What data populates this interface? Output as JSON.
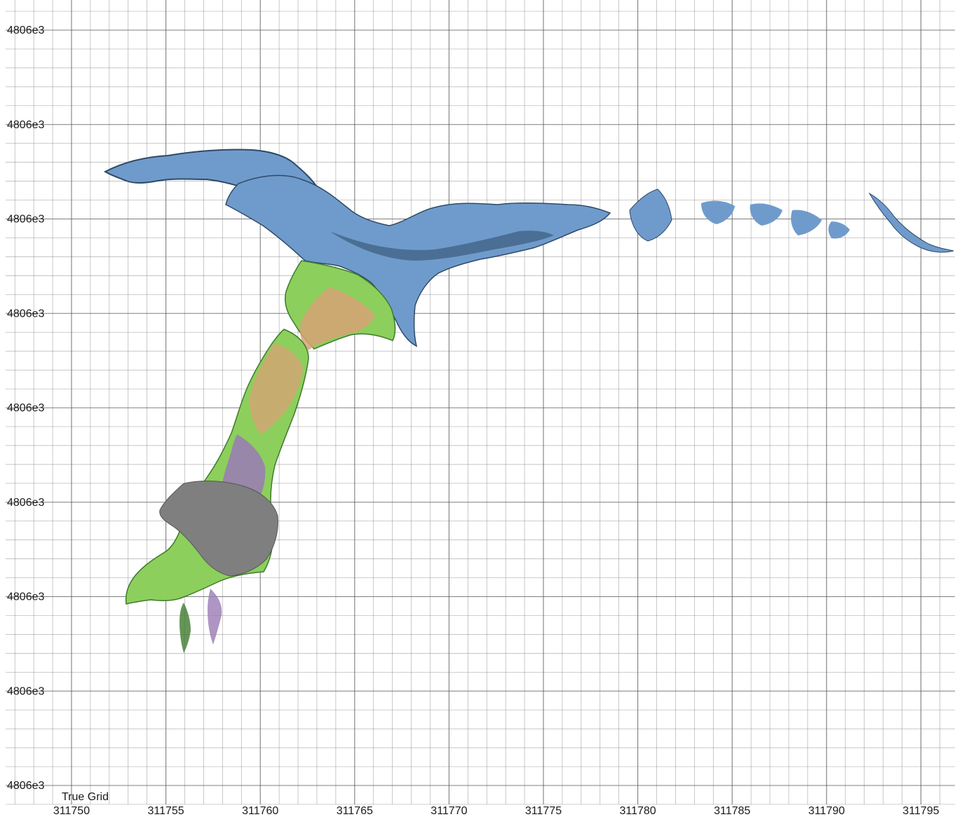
{
  "grid": {
    "name": "True Grid",
    "x_labels": [
      "311750",
      "311755",
      "311760",
      "311765",
      "311770",
      "311775",
      "311780",
      "311785",
      "311790",
      "311795"
    ],
    "y_labels": [
      "4806e3",
      "4806e3",
      "4806e3",
      "4806e3",
      "4806e3",
      "4806e3",
      "4806e3",
      "4806e3",
      "4806e3"
    ]
  },
  "colors": {
    "grid_line": "#555555",
    "label": "#1a1a1a",
    "cave_blue": "#6f9bcc",
    "cave_blue_dark": "#2e4a66",
    "cave_green": "#8ccf5c",
    "cave_green_dark": "#3d7a2c",
    "cave_tan": "#d6a274",
    "cave_purple": "#9a7ab5",
    "cave_gray": "#7f7f7f"
  }
}
